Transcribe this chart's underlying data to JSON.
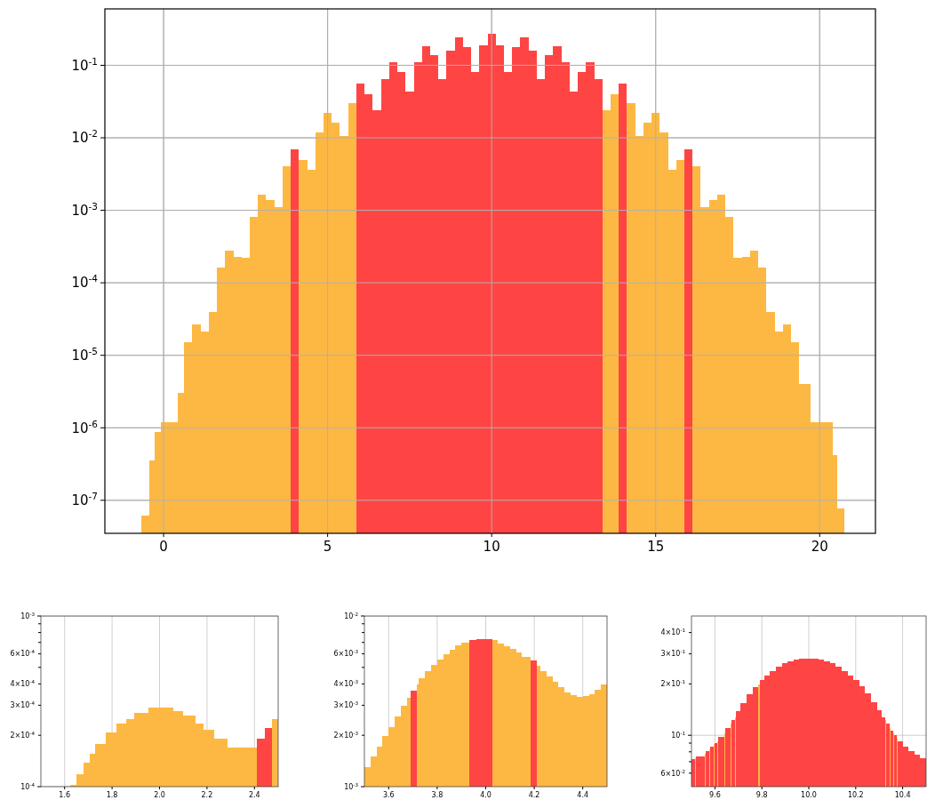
{
  "chart_data": [
    {
      "type": "histogram",
      "log": true,
      "grid": true,
      "bins": [
        -0.68,
        -0.43,
        -0.27,
        -0.08,
        0.44,
        0.625,
        0.875,
        1.125,
        1.375,
        1.625,
        1.875,
        2.125,
        2.375,
        2.625,
        2.875,
        3.125,
        3.375,
        3.625,
        3.875,
        4.125,
        4.375,
        4.625,
        4.875,
        5.125,
        5.375,
        5.625,
        5.875,
        6.125,
        6.375,
        6.625,
        6.875,
        7.125,
        7.375,
        7.625,
        7.875,
        8.125,
        8.375,
        8.625,
        8.875,
        9.125,
        9.375,
        9.625,
        9.875,
        10.125,
        10.375,
        10.625,
        10.875,
        11.125,
        11.375,
        11.625,
        11.875,
        12.125,
        12.375,
        12.625,
        12.875,
        13.125,
        13.375,
        13.625,
        13.875,
        14.125,
        14.375,
        14.625,
        14.875,
        15.125,
        15.375,
        15.625,
        15.875,
        16.125,
        16.375,
        16.625,
        16.875,
        17.125,
        17.375,
        17.625,
        17.875,
        18.125,
        18.375,
        18.625,
        18.875,
        19.125,
        19.375,
        19.73,
        20.41,
        20.54,
        20.76
      ],
      "values": [
        6.2e-08,
        3.5e-07,
        8.7e-07,
        1.2e-06,
        3e-06,
        1.5e-05,
        2.7e-05,
        2.1e-05,
        4e-05,
        0.00016,
        0.00028,
        0.00023,
        0.00022,
        0.0008,
        0.00165,
        0.0014,
        0.0011,
        0.004,
        0.007,
        0.005,
        0.0036,
        0.012,
        0.022,
        0.016,
        0.0105,
        0.03,
        0.056,
        0.04,
        0.024,
        0.065,
        0.11,
        0.08,
        0.043,
        0.11,
        0.185,
        0.14,
        0.065,
        0.16,
        0.245,
        0.18,
        0.08,
        0.19,
        0.275,
        0.19,
        0.08,
        0.18,
        0.245,
        0.16,
        0.065,
        0.14,
        0.185,
        0.11,
        0.043,
        0.08,
        0.11,
        0.065,
        0.024,
        0.04,
        0.056,
        0.03,
        0.0105,
        0.016,
        0.022,
        0.012,
        0.0036,
        0.005,
        0.007,
        0.004,
        0.0011,
        0.0014,
        0.00165,
        0.0008,
        0.00022,
        0.00023,
        0.00028,
        0.00016,
        4e-05,
        2.1e-05,
        2.7e-05,
        1.5e-05,
        4e-06,
        1.2e-06,
        4.2e-07,
        7.8e-08
      ],
      "colors": [
        "#fdb843",
        "#fdb843",
        "#fdb843",
        "#fdb843",
        "#fdb843",
        "#fdb843",
        "#fdb843",
        "#fdb843",
        "#fdb843",
        "#fdb843",
        "#fdb843",
        "#fdb843",
        "#fdb843",
        "#fdb843",
        "#fdb843",
        "#fdb843",
        "#fdb843",
        "#fdb843",
        "#ff4444",
        "#fdb843",
        "#fdb843",
        "#fdb843",
        "#fdb843",
        "#fdb843",
        "#fdb843",
        "#fdb843",
        "#ff4444",
        "#ff4444",
        "#ff4444",
        "#ff4444",
        "#ff4444",
        "#ff4444",
        "#ff4444",
        "#ff4444",
        "#ff4444",
        "#ff4444",
        "#ff4444",
        "#ff4444",
        "#ff4444",
        "#ff4444",
        "#ff4444",
        "#ff4444",
        "#ff4444",
        "#ff4444",
        "#ff4444",
        "#ff4444",
        "#ff4444",
        "#ff4444",
        "#ff4444",
        "#ff4444",
        "#ff4444",
        "#ff4444",
        "#ff4444",
        "#ff4444",
        "#ff4444",
        "#ff4444",
        "#fdb843",
        "#fdb843",
        "#ff4444",
        "#fdb843",
        "#fdb843",
        "#fdb843",
        "#fdb843",
        "#fdb843",
        "#fdb843",
        "#fdb843",
        "#ff4444",
        "#fdb843",
        "#fdb843",
        "#fdb843",
        "#fdb843",
        "#fdb843",
        "#fdb843",
        "#fdb843",
        "#fdb843",
        "#fdb843",
        "#fdb843",
        "#fdb843",
        "#fdb843",
        "#fdb843",
        "#fdb843",
        "#fdb843",
        "#fdb843",
        "#fdb843"
      ],
      "xlim": [
        -1.79,
        21.7
      ],
      "xticks": [
        0,
        5,
        10,
        15,
        20
      ],
      "ylim": [
        3.5e-08,
        0.6
      ],
      "yticks": [
        {
          "value": 1e-07,
          "label": "10$^{-7}$"
        },
        {
          "value": 1e-06,
          "label": "10$^{-6}$"
        },
        {
          "value": 1e-05,
          "label": "10$^{-5}$"
        },
        {
          "value": 0.0001,
          "label": "10$^{-4}$"
        },
        {
          "value": 0.001,
          "label": "10$^{-3}$"
        },
        {
          "value": 0.01,
          "label": "10$^{-2}$"
        },
        {
          "value": 0.1,
          "label": "10$^{-1}$"
        }
      ]
    },
    {
      "type": "histogram",
      "log": true,
      "grid": true,
      "bins": [
        1.622,
        1.648,
        1.68,
        1.705,
        1.73,
        1.773,
        1.817,
        1.86,
        1.892,
        1.952,
        2.057,
        2.101,
        2.151,
        2.186,
        2.229,
        2.285,
        2.411,
        2.442,
        2.473,
        2.5
      ],
      "values": [
        0.000102,
        0.000118,
        0.000138,
        0.000155,
        0.000177,
        0.000208,
        0.000234,
        0.000249,
        0.000271,
        0.00029,
        0.000278,
        0.00026,
        0.000234,
        0.000215,
        0.000191,
        0.00017,
        0.000191,
        0.00022,
        0.00025
      ],
      "colors": [
        "#fdb843",
        "#fdb843",
        "#fdb843",
        "#fdb843",
        "#fdb843",
        "#fdb843",
        "#fdb843",
        "#fdb843",
        "#fdb843",
        "#fdb843",
        "#fdb843",
        "#fdb843",
        "#fdb843",
        "#fdb843",
        "#fdb843",
        "#fdb843",
        "#ff4444",
        "#ff4444",
        "#fdb843"
      ],
      "xlim": [
        1.5,
        2.5
      ],
      "xticks": [
        1.6,
        1.8,
        {
          "value": 2.0,
          "label": "2.0"
        },
        2.2,
        2.4
      ],
      "ylim": [
        0.0001,
        0.001
      ],
      "yticks": [
        {
          "value": 0.0001,
          "label": "10$^{-4}$"
        },
        {
          "value": 0.0002,
          "label": "2×10$^{-4}$"
        },
        {
          "value": 0.0003,
          "label": "3×10$^{-4}$"
        },
        {
          "value": 0.0004,
          "label": "4×10$^{-4}$"
        },
        {
          "value": 0.0005,
          "label": null
        },
        {
          "value": 0.0006,
          "label": "6×10$^{-4}$"
        },
        {
          "value": 0.0007,
          "label": null
        },
        {
          "value": 0.0008,
          "label": null
        },
        {
          "value": 0.0009,
          "label": null
        },
        {
          "value": 0.001,
          "label": "10$^{-3}$"
        }
      ]
    },
    {
      "type": "histogram",
      "log": true,
      "grid": true,
      "bins": [
        3.5,
        3.525,
        3.55,
        3.575,
        3.6,
        3.625,
        3.65,
        3.675,
        3.691,
        3.715,
        3.725,
        3.75,
        3.775,
        3.8,
        3.825,
        3.85,
        3.875,
        3.9,
        3.933,
        3.96,
        4.028,
        4.05,
        4.075,
        4.1,
        4.125,
        4.15,
        4.186,
        4.212,
        4.225,
        4.25,
        4.275,
        4.3,
        4.325,
        4.35,
        4.375,
        4.4,
        4.425,
        4.45,
        4.475,
        4.5
      ],
      "values": [
        0.0013,
        0.0015,
        0.00172,
        0.00197,
        0.00224,
        0.00258,
        0.00298,
        0.0033,
        0.00367,
        0.00395,
        0.0043,
        0.00475,
        0.00517,
        0.00557,
        0.00598,
        0.00636,
        0.0067,
        0.007,
        0.0072,
        0.00735,
        0.0072,
        0.00692,
        0.00666,
        0.00638,
        0.00608,
        0.00575,
        0.00548,
        0.0051,
        0.00477,
        0.00442,
        0.00412,
        0.00382,
        0.00358,
        0.00344,
        0.00337,
        0.00338,
        0.00347,
        0.0037,
        0.00397
      ],
      "colors": [
        "#fdb843",
        "#fdb843",
        "#fdb843",
        "#fdb843",
        "#fdb843",
        "#fdb843",
        "#fdb843",
        "#fdb843",
        "#ff4444",
        "#fdb843",
        "#fdb843",
        "#fdb843",
        "#fdb843",
        "#fdb843",
        "#fdb843",
        "#fdb843",
        "#fdb843",
        "#fdb843",
        "#ff4444",
        "#ff4444",
        "#fdb843",
        "#fdb843",
        "#fdb843",
        "#fdb843",
        "#fdb843",
        "#fdb843",
        "#ff4444",
        "#fdb843",
        "#fdb843",
        "#fdb843",
        "#fdb843",
        "#fdb843",
        "#fdb843",
        "#fdb843",
        "#fdb843",
        "#fdb843",
        "#fdb843",
        "#fdb843",
        "#fdb843"
      ],
      "xlim": [
        3.5,
        4.5
      ],
      "xticks": [
        3.6,
        3.8,
        {
          "value": 4.0,
          "label": "4.0"
        },
        4.2,
        4.4
      ],
      "ylim": [
        0.001,
        0.01
      ],
      "yticks": [
        {
          "value": 0.001,
          "label": "10$^{-3}$"
        },
        {
          "value": 0.002,
          "label": "2×10$^{-3}$"
        },
        {
          "value": 0.003,
          "label": "3×10$^{-3}$"
        },
        {
          "value": 0.004,
          "label": "4×10$^{-3}$"
        },
        {
          "value": 0.005,
          "label": null
        },
        {
          "value": 0.006,
          "label": "6×10$^{-3}$"
        },
        {
          "value": 0.007,
          "label": null
        },
        {
          "value": 0.008,
          "label": null
        },
        {
          "value": 0.009,
          "label": null
        },
        {
          "value": 0.01,
          "label": "10$^{-2}$"
        }
      ]
    },
    {
      "type": "histogram",
      "log": true,
      "grid": true,
      "bins": [
        9.5,
        9.515,
        9.52,
        9.555,
        9.56,
        9.575,
        9.58,
        9.595,
        9.6,
        9.61,
        9.615,
        9.64,
        9.645,
        9.665,
        9.67,
        9.685,
        9.69,
        9.71,
        9.735,
        9.76,
        9.785,
        9.79,
        9.81,
        9.835,
        9.86,
        9.885,
        9.91,
        9.935,
        9.96,
        9.985,
        10.015,
        10.04,
        10.065,
        10.09,
        10.115,
        10.14,
        10.165,
        10.19,
        10.215,
        10.24,
        10.265,
        10.29,
        10.31,
        10.325,
        10.33,
        10.345,
        10.35,
        10.36,
        10.365,
        10.375,
        10.38,
        10.4,
        10.425,
        10.45,
        10.475,
        10.5
      ],
      "values": [
        0.0727,
        0.0733,
        0.0755,
        0.0775,
        0.0805,
        0.0825,
        0.0855,
        0.0885,
        0.0905,
        0.0925,
        0.098,
        0.103,
        0.111,
        0.117,
        0.123,
        0.128,
        0.138,
        0.154,
        0.174,
        0.191,
        0.199,
        0.21,
        0.224,
        0.238,
        0.252,
        0.264,
        0.272,
        0.277,
        0.28,
        0.281,
        0.28,
        0.277,
        0.272,
        0.264,
        0.252,
        0.238,
        0.224,
        0.21,
        0.193,
        0.176,
        0.156,
        0.14,
        0.128,
        0.123,
        0.117,
        0.111,
        0.107,
        0.103,
        0.1,
        0.097,
        0.092,
        0.086,
        0.081,
        0.077,
        0.073
      ],
      "colors": [
        "#ff4444",
        "#fdb843",
        "#ff4444",
        "#fdb843",
        "#ff4444",
        "#fdb843",
        "#ff4444",
        "#fdb843",
        "#ff4444",
        "#fdb843",
        "#ff4444",
        "#fdb843",
        "#ff4444",
        "#fdb843",
        "#ff4444",
        "#fdb843",
        "#ff4444",
        "#ff4444",
        "#ff4444",
        "#ff4444",
        "#fdb843",
        "#ff4444",
        "#ff4444",
        "#ff4444",
        "#ff4444",
        "#ff4444",
        "#ff4444",
        "#ff4444",
        "#ff4444",
        "#ff4444",
        "#ff4444",
        "#ff4444",
        "#ff4444",
        "#ff4444",
        "#ff4444",
        "#ff4444",
        "#ff4444",
        "#ff4444",
        "#ff4444",
        "#ff4444",
        "#ff4444",
        "#ff4444",
        "#ff4444",
        "#fdb843",
        "#ff4444",
        "#fdb843",
        "#ff4444",
        "#fdb843",
        "#ff4444",
        "#fdb843",
        "#ff4444",
        "#ff4444",
        "#ff4444",
        "#ff4444",
        "#ff4444"
      ],
      "xlim": [
        9.5,
        10.5
      ],
      "xticks": [
        9.6,
        9.8,
        {
          "value": 10.0,
          "label": "10.0"
        },
        10.2,
        10.4
      ],
      "ylim": [
        0.05,
        0.5
      ],
      "yticks": [
        {
          "value": 0.06,
          "label": "6×10$^{-2}$"
        },
        {
          "value": 0.07,
          "label": null
        },
        {
          "value": 0.08,
          "label": null
        },
        {
          "value": 0.09,
          "label": null
        },
        {
          "value": 0.1,
          "label": "10$^{-1}$"
        },
        {
          "value": 0.2,
          "label": "2×10$^{-1}$"
        },
        {
          "value": 0.3,
          "label": "3×10$^{-1}$"
        },
        {
          "value": 0.4,
          "label": "4×10$^{-1}$"
        }
      ]
    }
  ]
}
